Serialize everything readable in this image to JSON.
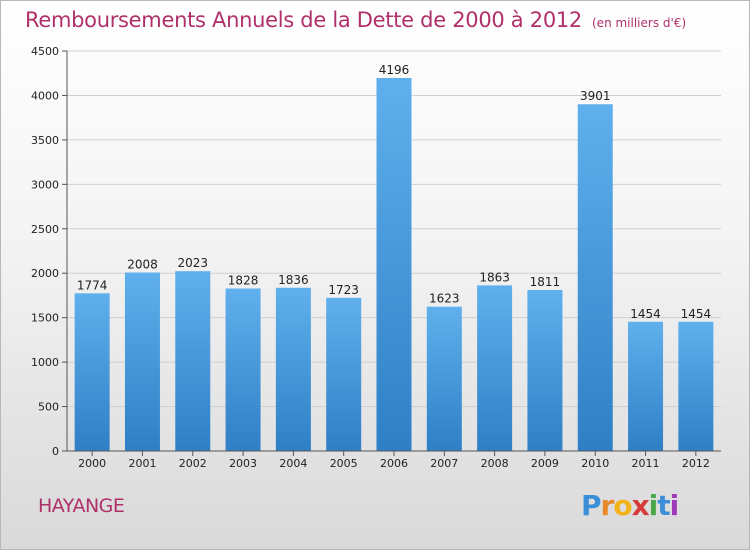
{
  "chart_data": {
    "type": "bar",
    "title": "Remboursements Annuels de la Dette de 2000 à 2012",
    "subtitle": "(en milliers d'€)",
    "categories": [
      "2000",
      "2001",
      "2002",
      "2003",
      "2004",
      "2005",
      "2006",
      "2007",
      "2008",
      "2009",
      "2010",
      "2011",
      "2012"
    ],
    "values": [
      1774,
      2008,
      2023,
      1828,
      1836,
      1723,
      4196,
      1623,
      1863,
      1811,
      3901,
      1454,
      1454
    ],
    "ylim": [
      0,
      4500
    ],
    "yticks": [
      0,
      500,
      1000,
      1500,
      2000,
      2500,
      3000,
      3500,
      4000,
      4500
    ],
    "grid": true,
    "bar_color": "#3a8fd6"
  },
  "city": "HAYANGE",
  "logo": {
    "letters": [
      "P",
      "r",
      "o",
      "x",
      "i",
      "t",
      "i"
    ],
    "colors": [
      "#3b8fd8",
      "#e8892b",
      "#f2b21a",
      "#d63b3b",
      "#4aa84a",
      "#3b8fd8",
      "#9b3bb8"
    ]
  }
}
